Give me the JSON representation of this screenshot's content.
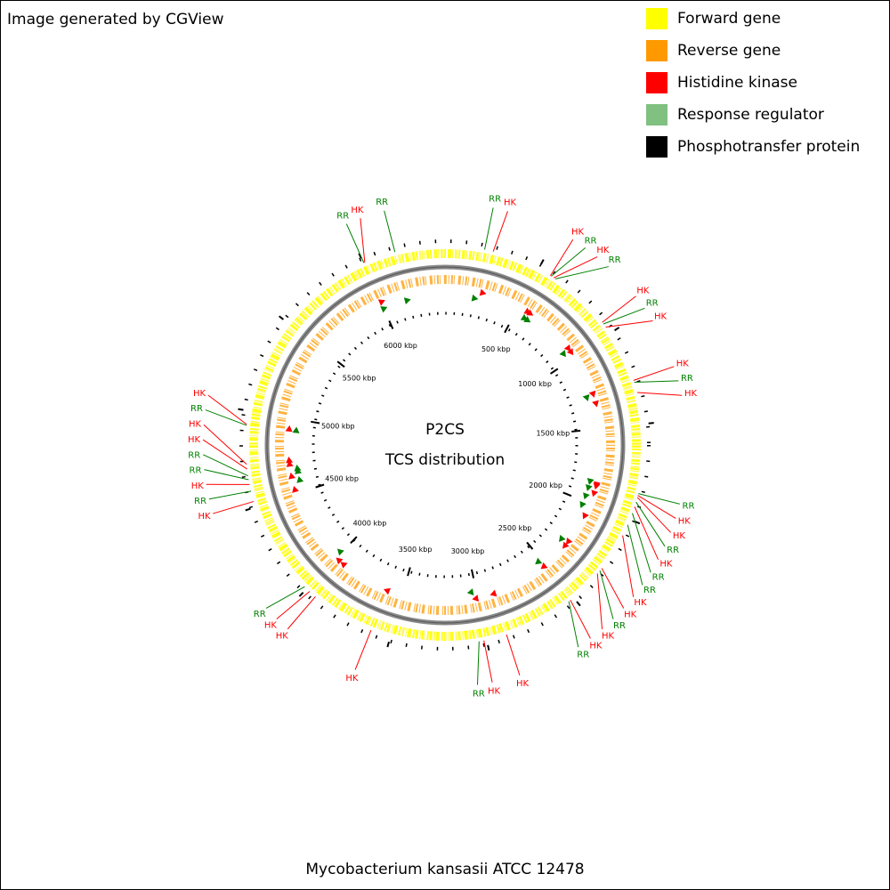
{
  "header": {
    "credit": "Image generated by CGView"
  },
  "legend": [
    {
      "name": "Forward gene",
      "color": "#ffff00"
    },
    {
      "name": "Reverse gene",
      "color": "#ff9900"
    },
    {
      "name": "Histidine kinase",
      "color": "#ff0000"
    },
    {
      "name": "Response regulator",
      "color": "#80c080"
    },
    {
      "name": "Phosphotransfer protein",
      "color": "#000000"
    }
  ],
  "map": {
    "center_title": "P2CS",
    "center_subtitle": "TCS distribution",
    "title": "Mycobacterium kansasii ATCC 12478",
    "xlim": [
      0,
      6432
    ],
    "xticks": [
      {
        "value": 500,
        "label": "500 kbp"
      },
      {
        "value": 1000,
        "label": "1000 kbp"
      },
      {
        "value": 1500,
        "label": "1500 kbp"
      },
      {
        "value": 2000,
        "label": "2000 kbp"
      },
      {
        "value": 2500,
        "label": "2500 kbp"
      },
      {
        "value": 3000,
        "label": "3000 kbp"
      },
      {
        "value": 3500,
        "label": "3500 kbp"
      },
      {
        "value": 4000,
        "label": "4000 kbp"
      },
      {
        "value": 4500,
        "label": "4500 kbp"
      },
      {
        "value": 5000,
        "label": "5000 kbp"
      },
      {
        "value": 5500,
        "label": "5500 kbp"
      },
      {
        "value": 6000,
        "label": "6000 kbp"
      }
    ],
    "feature_colors": {
      "HK": "#ff0000",
      "RR": "#008000"
    },
    "features": [
      {
        "label": "RR",
        "position": 205
      },
      {
        "label": "HK",
        "position": 250
      },
      {
        "label": "HK",
        "position": 570
      },
      {
        "label": "RR",
        "position": 575
      },
      {
        "label": "HK",
        "position": 590
      },
      {
        "label": "RR",
        "position": 600
      },
      {
        "label": "HK",
        "position": 930
      },
      {
        "label": "RR",
        "position": 940
      },
      {
        "label": "HK",
        "position": 960
      },
      {
        "label": "HK",
        "position": 1270
      },
      {
        "label": "RR",
        "position": 1280
      },
      {
        "label": "HK",
        "position": 1335
      },
      {
        "label": "RR",
        "position": 1860
      },
      {
        "label": "HK",
        "position": 1870
      },
      {
        "label": "HK",
        "position": 1880
      },
      {
        "label": "RR",
        "position": 1905
      },
      {
        "label": "HK",
        "position": 1930
      },
      {
        "label": "RR",
        "position": 1965
      },
      {
        "label": "RR",
        "position": 2030
      },
      {
        "label": "HK",
        "position": 2090
      },
      {
        "label": "HK",
        "position": 2290
      },
      {
        "label": "RR",
        "position": 2305
      },
      {
        "label": "HK",
        "position": 2325
      },
      {
        "label": "HK",
        "position": 2520
      },
      {
        "label": "RR",
        "position": 2530
      },
      {
        "label": "HK",
        "position": 2895
      },
      {
        "label": "HK",
        "position": 3015
      },
      {
        "label": "RR",
        "position": 3040
      },
      {
        "label": "HK",
        "position": 3605
      },
      {
        "label": "HK",
        "position": 3940
      },
      {
        "label": "HK",
        "position": 3980
      },
      {
        "label": "RR",
        "position": 4015
      },
      {
        "label": "HK",
        "position": 4530
      },
      {
        "label": "RR",
        "position": 4585
      },
      {
        "label": "HK",
        "position": 4620
      },
      {
        "label": "RR",
        "position": 4645
      },
      {
        "label": "RR",
        "position": 4665
      },
      {
        "label": "HK",
        "position": 4700
      },
      {
        "label": "HK",
        "position": 4725
      },
      {
        "label": "RR",
        "position": 4925
      },
      {
        "label": "HK",
        "position": 4930
      },
      {
        "label": "RR",
        "position": 6003
      },
      {
        "label": "HK",
        "position": 6008
      },
      {
        "label": "RR",
        "position": 6172
      }
    ]
  }
}
